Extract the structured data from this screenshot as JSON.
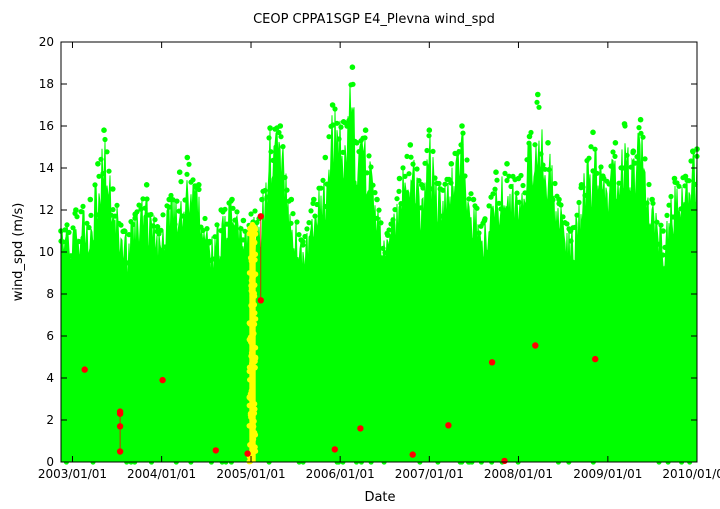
{
  "chart_data": {
    "type": "scatter",
    "title": "CEOP CPPA1SGP E4_Plevna  wind_spd",
    "xlabel": "Date",
    "ylabel": "wind_spd (m/s)",
    "xlim": [
      "2002-11-15",
      "2010-01-01"
    ],
    "ylim": [
      0,
      20
    ],
    "grid": false,
    "legend": "none",
    "x_ticks": [
      "2003/01/01",
      "2004/01/01",
      "2005/01/01",
      "2006/01/01",
      "2007/01/01",
      "2008/01/01",
      "2009/01/01",
      "2010/01/01"
    ],
    "y_ticks": [
      0,
      2,
      4,
      6,
      8,
      10,
      12,
      14,
      16,
      18,
      20
    ],
    "colors": {
      "good": "#00ff00",
      "questionable": "#ffff00",
      "bad": "#ff0000"
    },
    "series": [
      {
        "color": "#00ff00",
        "envelope": [
          [
            "2002-11-15",
            11.0
          ],
          [
            "2003-01-15",
            12.0
          ],
          [
            "2003-03-15",
            12.5
          ],
          [
            "2003-04-15",
            14.2
          ],
          [
            "2003-05-10",
            15.8
          ],
          [
            "2003-06-15",
            13.0
          ],
          [
            "2003-08-01",
            11.0
          ],
          [
            "2003-09-15",
            11.8
          ],
          [
            "2003-11-01",
            13.2
          ],
          [
            "2003-12-15",
            11.2
          ],
          [
            "2004-02-01",
            12.5
          ],
          [
            "2004-03-15",
            13.8
          ],
          [
            "2004-04-15",
            14.5
          ],
          [
            "2004-06-01",
            13.2
          ],
          [
            "2004-07-15",
            10.5
          ],
          [
            "2004-09-01",
            12.0
          ],
          [
            "2004-10-15",
            12.5
          ],
          [
            "2004-12-01",
            11.5
          ],
          [
            "2005-02-15",
            12.5
          ],
          [
            "2005-03-20",
            15.9
          ],
          [
            "2005-05-01",
            16.0
          ],
          [
            "2005-06-15",
            12.5
          ],
          [
            "2005-08-01",
            10.5
          ],
          [
            "2005-09-15",
            12.5
          ],
          [
            "2005-11-01",
            14.5
          ],
          [
            "2005-12-01",
            17.0
          ],
          [
            "2006-01-15",
            16.2
          ],
          [
            "2006-02-20",
            18.8
          ],
          [
            "2006-03-10",
            15.2
          ],
          [
            "2006-04-15",
            15.8
          ],
          [
            "2006-06-01",
            12.5
          ],
          [
            "2006-07-15",
            10.8
          ],
          [
            "2006-09-01",
            13.5
          ],
          [
            "2006-10-15",
            15.1
          ],
          [
            "2006-12-01",
            13.2
          ],
          [
            "2007-01-01",
            15.8
          ],
          [
            "2007-02-15",
            13.0
          ],
          [
            "2007-04-01",
            14.2
          ],
          [
            "2007-05-15",
            16.0
          ],
          [
            "2007-07-01",
            12.5
          ],
          [
            "2007-08-15",
            11.5
          ],
          [
            "2007-10-01",
            13.8
          ],
          [
            "2007-11-15",
            14.2
          ],
          [
            "2008-01-01",
            13.5
          ],
          [
            "2008-02-15",
            15.5
          ],
          [
            "2008-03-20",
            17.5
          ],
          [
            "2008-05-01",
            15.2
          ],
          [
            "2008-06-15",
            12.5
          ],
          [
            "2008-08-01",
            11.0
          ],
          [
            "2008-09-15",
            13.2
          ],
          [
            "2008-11-01",
            15.7
          ],
          [
            "2008-12-15",
            13.5
          ],
          [
            "2009-02-01",
            15.2
          ],
          [
            "2009-03-10",
            16.1
          ],
          [
            "2009-04-15",
            14.8
          ],
          [
            "2009-05-15",
            16.3
          ],
          [
            "2009-07-01",
            12.5
          ],
          [
            "2009-08-15",
            11.0
          ],
          [
            "2009-10-01",
            13.5
          ],
          [
            "2009-11-15",
            13.6
          ],
          [
            "2009-12-15",
            14.8
          ],
          [
            "2010-01-01",
            14.9
          ]
        ]
      },
      {
        "color": "#ffff00",
        "range": [
          "2004-12-25",
          "2005-01-20"
        ],
        "max": 11.3
      },
      {
        "color": "#ff0000",
        "points": [
          [
            "2003-02-20",
            4.4
          ],
          [
            "2003-07-15",
            2.4
          ],
          [
            "2003-07-15",
            2.3
          ],
          [
            "2003-07-15",
            1.7
          ],
          [
            "2003-07-15",
            0.5
          ],
          [
            "2004-01-05",
            3.9
          ],
          [
            "2004-08-10",
            0.55
          ],
          [
            "2004-12-18",
            0.4
          ],
          [
            "2005-02-10",
            11.7
          ],
          [
            "2005-02-10",
            7.7
          ],
          [
            "2005-12-10",
            0.6
          ],
          [
            "2006-03-25",
            1.6
          ],
          [
            "2006-10-25",
            0.35
          ],
          [
            "2007-03-20",
            1.75
          ],
          [
            "2007-09-15",
            4.75
          ],
          [
            "2007-11-05",
            0.05
          ],
          [
            "2008-03-10",
            5.55
          ],
          [
            "2008-11-10",
            4.9
          ]
        ]
      }
    ]
  }
}
